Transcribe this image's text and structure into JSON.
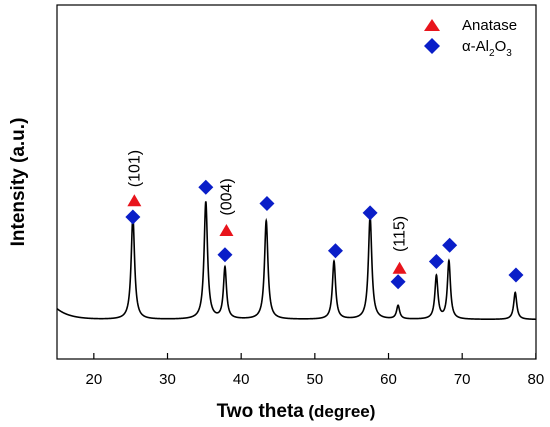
{
  "chart_data": {
    "type": "line",
    "title": "",
    "xlabel": "Two theta",
    "xlabel_unit": "(degree)",
    "ylabel": "Intensity (a.u.)",
    "xlim": [
      15,
      80
    ],
    "ylim": [
      0,
      100
    ],
    "x_ticks": [
      20,
      30,
      40,
      50,
      60,
      70,
      80
    ],
    "y_ticks_shown": false,
    "grid": false,
    "legend_position": "top-right",
    "line_color": "#000000",
    "baseline": 27,
    "curve_start": {
      "x": 15,
      "y": 35
    },
    "peaks": [
      {
        "center": 25.3,
        "height": 76,
        "width": 0.28
      },
      {
        "center": 35.2,
        "height": 87,
        "width": 0.28
      },
      {
        "center": 37.8,
        "height": 38,
        "width": 0.25
      },
      {
        "center": 43.4,
        "height": 73,
        "width": 0.28
      },
      {
        "center": 52.6,
        "height": 43,
        "width": 0.26
      },
      {
        "center": 57.5,
        "height": 76,
        "width": 0.28
      },
      {
        "center": 61.3,
        "height": 10,
        "width": 0.25
      },
      {
        "center": 66.5,
        "height": 32,
        "width": 0.25
      },
      {
        "center": 68.2,
        "height": 43,
        "width": 0.25
      },
      {
        "center": 77.2,
        "height": 20,
        "width": 0.25
      }
    ],
    "series": [
      {
        "name": "Anatase",
        "marker": "triangle",
        "color": "#e8141c",
        "points": [
          {
            "x": 25.5,
            "y": 115
          },
          {
            "x": 38.0,
            "y": 93
          },
          {
            "x": 61.5,
            "y": 65
          }
        ]
      },
      {
        "name": "α-Al2O3",
        "legend_label": {
          "prefix": "α-Al",
          "sub1": "2",
          "mid": "O",
          "sub2": "3"
        },
        "marker": "diamond",
        "color": "#0a1ec8",
        "points": [
          {
            "x": 25.3,
            "y": 103
          },
          {
            "x": 35.2,
            "y": 125
          },
          {
            "x": 37.8,
            "y": 75
          },
          {
            "x": 43.5,
            "y": 113
          },
          {
            "x": 52.8,
            "y": 78
          },
          {
            "x": 57.5,
            "y": 106
          },
          {
            "x": 61.3,
            "y": 55
          },
          {
            "x": 66.5,
            "y": 70
          },
          {
            "x": 68.3,
            "y": 82
          },
          {
            "x": 77.3,
            "y": 60
          }
        ]
      }
    ],
    "annotations": [
      {
        "text": "(101)",
        "x": 25.5,
        "y": 125
      },
      {
        "text": "(004)",
        "x": 38.0,
        "y": 104
      },
      {
        "text": "(115)",
        "x": 61.5,
        "y": 77
      }
    ]
  }
}
